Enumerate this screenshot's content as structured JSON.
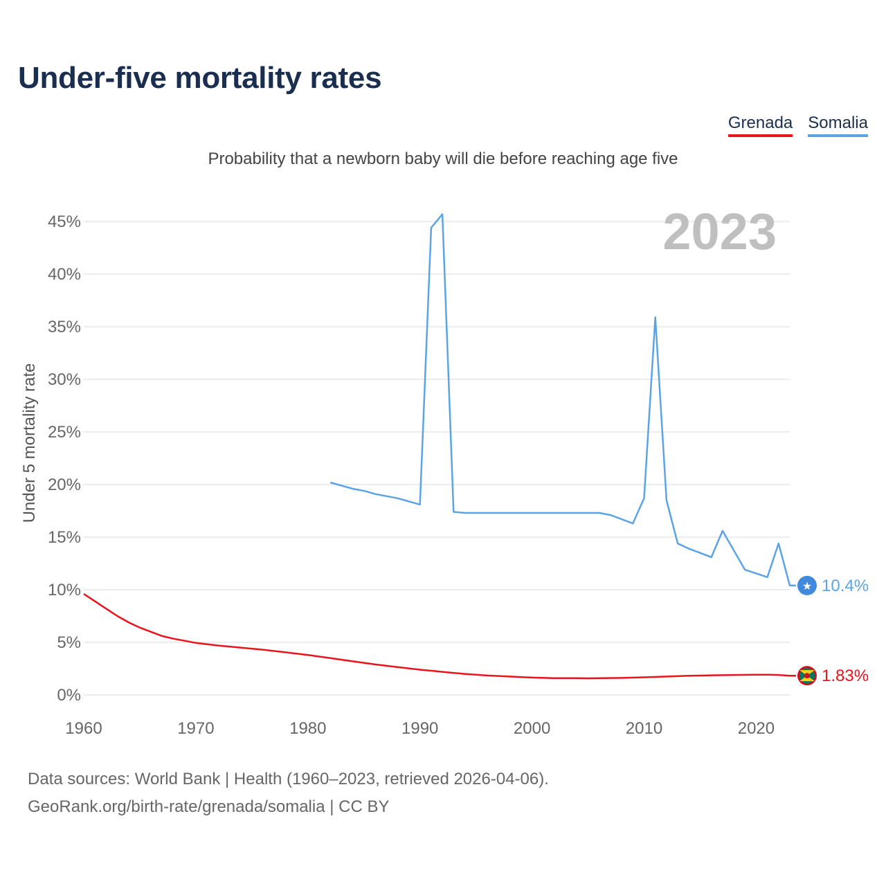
{
  "title": "Under-five mortality rates",
  "subtitle": "Probability that a newborn baby will die before reaching age five",
  "legend": {
    "grenada": "Grenada",
    "somalia": "Somalia"
  },
  "source_line1": "Data sources: World Bank | Health (1960–2023, retrieved 2026-04-06).",
  "source_line2": "GeoRank.org/birth-rate/grenada/somalia | CC BY",
  "chart_data": {
    "type": "line",
    "title": "Under-five mortality rates",
    "subtitle": "Probability that a newborn baby will die before reaching age five",
    "xlabel": "",
    "ylabel": "Under 5 mortality rate",
    "year_label": "2023",
    "xlim": [
      1960,
      2023
    ],
    "ylim": [
      0,
      47
    ],
    "y_ticks": [
      0,
      5,
      10,
      15,
      20,
      25,
      30,
      35,
      40,
      45
    ],
    "y_tick_labels": [
      "0%",
      "5%",
      "10%",
      "15%",
      "20%",
      "25%",
      "30%",
      "35%",
      "40%",
      "45%"
    ],
    "x_ticks": [
      1960,
      1970,
      1980,
      1990,
      2000,
      2010,
      2020
    ],
    "x_tick_labels": [
      "1960",
      "1970",
      "1980",
      "1990",
      "2000",
      "2010",
      "2020"
    ],
    "grid": true,
    "series": [
      {
        "name": "Grenada",
        "color": "#e8141b",
        "end_label": "1.83%",
        "icon": "grenada-flag-icon",
        "x": [
          1960,
          1961,
          1962,
          1963,
          1964,
          1965,
          1966,
          1967,
          1968,
          1969,
          1970,
          1972,
          1974,
          1976,
          1978,
          1980,
          1982,
          1984,
          1986,
          1988,
          1990,
          1992,
          1994,
          1996,
          1998,
          2000,
          2002,
          2004,
          2005,
          2006,
          2008,
          2010,
          2012,
          2014,
          2016,
          2018,
          2020,
          2021,
          2022,
          2023
        ],
        "y": [
          9.6,
          8.9,
          8.2,
          7.5,
          6.9,
          6.4,
          6.0,
          5.6,
          5.35,
          5.15,
          4.95,
          4.7,
          4.5,
          4.3,
          4.05,
          3.8,
          3.5,
          3.2,
          2.9,
          2.65,
          2.4,
          2.2,
          2.0,
          1.85,
          1.75,
          1.65,
          1.6,
          1.6,
          1.58,
          1.6,
          1.62,
          1.68,
          1.75,
          1.82,
          1.87,
          1.9,
          1.92,
          1.92,
          1.9,
          1.83
        ]
      },
      {
        "name": "Somalia",
        "color": "#5aa4e6",
        "end_label": "10.4%",
        "icon": "somalia-flag-icon",
        "x": [
          1982,
          1984,
          1985,
          1986,
          1988,
          1990,
          1991,
          1992,
          1993,
          1994,
          1996,
          1998,
          2000,
          2002,
          2004,
          2006,
          2007,
          2009,
          2010,
          2011,
          2012,
          2013,
          2014,
          2016,
          2017,
          2019,
          2021,
          2022,
          2023
        ],
        "y": [
          20.2,
          19.6,
          19.4,
          19.1,
          18.7,
          18.1,
          44.4,
          45.7,
          17.4,
          17.3,
          17.3,
          17.3,
          17.3,
          17.3,
          17.3,
          17.3,
          17.1,
          16.3,
          18.7,
          35.9,
          18.5,
          14.4,
          13.9,
          13.1,
          15.6,
          11.9,
          11.2,
          14.4,
          10.4
        ]
      }
    ]
  }
}
